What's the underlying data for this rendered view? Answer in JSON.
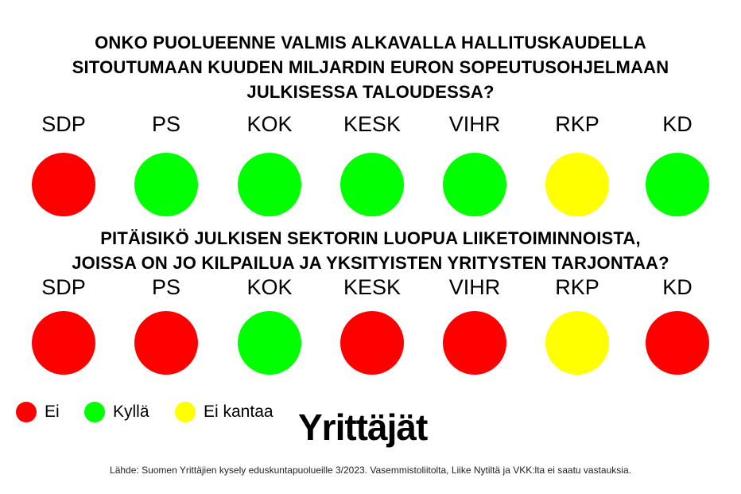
{
  "questions": [
    {
      "text": "ONKO PUOLUEENNE VALMIS ALKAVALLA HALLITUSKAUDELLA\nSITOUTUMAAN KUUDEN MILJARDIN EURON SOPEUTUSOHJELMAAN\nJULKISESSA TALOUDESSA?",
      "answers": [
        {
          "party": "SDP",
          "answer": "Ei"
        },
        {
          "party": "PS",
          "answer": "Kyllä"
        },
        {
          "party": "KOK",
          "answer": "Kyllä"
        },
        {
          "party": "KESK",
          "answer": "Kyllä"
        },
        {
          "party": "VIHR",
          "answer": "Kyllä"
        },
        {
          "party": "RKP",
          "answer": "Ei kantaa"
        },
        {
          "party": "KD",
          "answer": "Kyllä"
        }
      ]
    },
    {
      "text": "PITÄISIKÖ JULKISEN SEKTORIN LUOPUA LIIKETOIMINNOISTA,\nJOISSA ON JO KILPAILUA JA YKSITYISTEN YRITYSTEN TARJONTAA?",
      "answers": [
        {
          "party": "SDP",
          "answer": "Ei"
        },
        {
          "party": "PS",
          "answer": "Ei"
        },
        {
          "party": "KOK",
          "answer": "Kyllä"
        },
        {
          "party": "KESK",
          "answer": "Ei"
        },
        {
          "party": "VIHR",
          "answer": "Ei"
        },
        {
          "party": "RKP",
          "answer": "Ei kantaa"
        },
        {
          "party": "KD",
          "answer": "Ei"
        }
      ]
    }
  ],
  "legend": [
    {
      "label": "Ei",
      "color": "#ff0000"
    },
    {
      "label": "Kyllä",
      "color": "#00ff00"
    },
    {
      "label": "Ei kantaa",
      "color": "#ffff00"
    }
  ],
  "brand": "Yrittäjät",
  "source": "Lähde: Suomen Yrittäjien kysely eduskuntapuolueille 3/2023. Vasemmistoliitolta, Liike Nytiltä ja VKK:lta ei saatu vastauksia."
}
